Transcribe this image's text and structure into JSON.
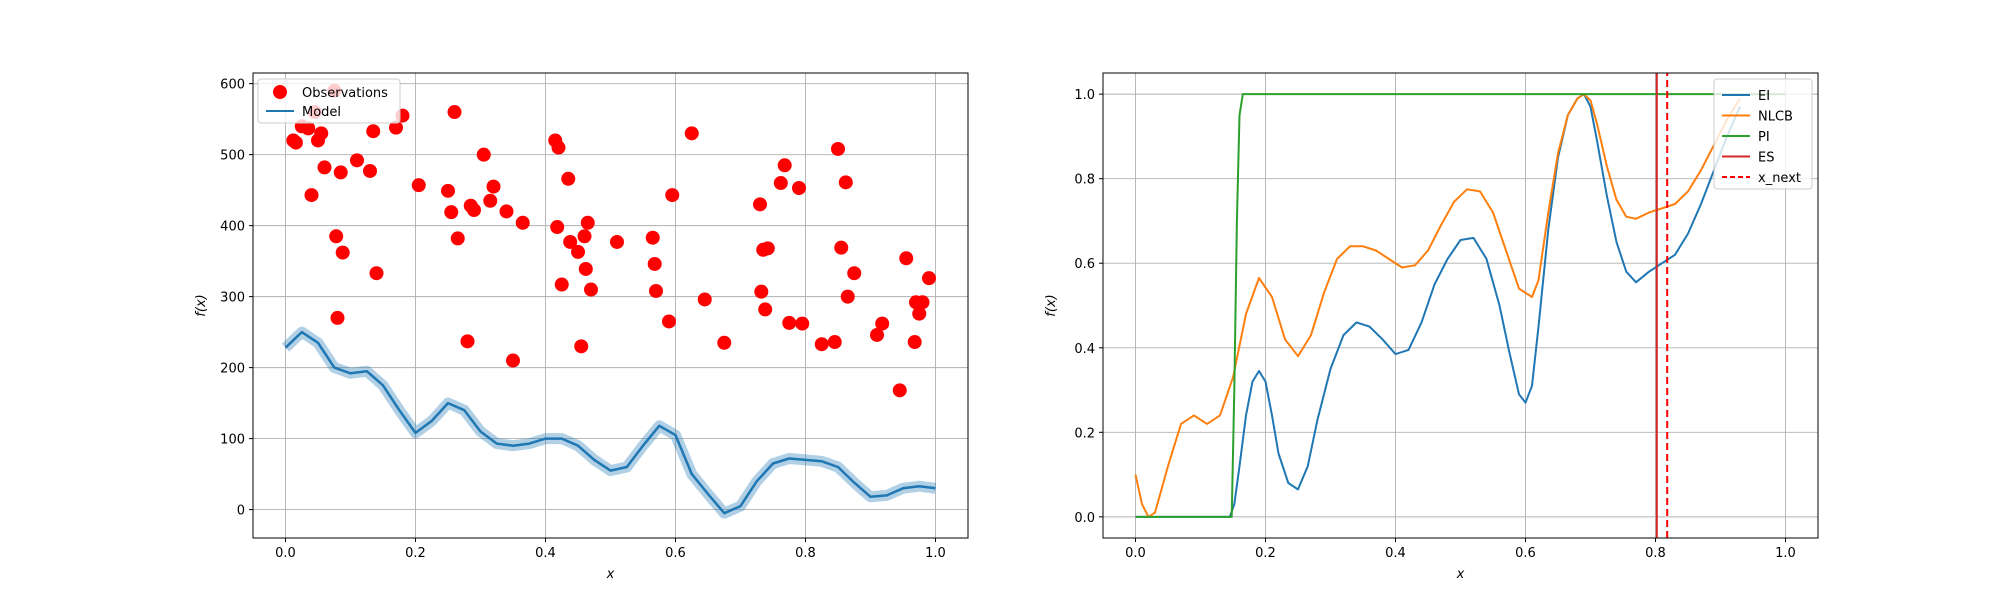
{
  "chart_data": [
    {
      "type": "scatter",
      "title": "",
      "xlabel": "x",
      "ylabel": "f(x)",
      "xlim": [
        -0.05,
        1.05
      ],
      "ylim": [
        -40,
        615
      ],
      "xticks": [
        "0.0",
        "0.2",
        "0.4",
        "0.6",
        "0.8",
        "1.0"
      ],
      "yticks": [
        "0",
        "100",
        "200",
        "300",
        "400",
        "500",
        "600"
      ],
      "grid": true,
      "legend_position": "top-left",
      "legend": [
        "Observations",
        "Model"
      ],
      "colors": {
        "observations": "#ff0000",
        "model": "#1f77b4"
      },
      "observations": {
        "name": "Observations",
        "x": [
          0.012,
          0.016,
          0.025,
          0.035,
          0.04,
          0.045,
          0.05,
          0.055,
          0.06,
          0.075,
          0.078,
          0.08,
          0.085,
          0.088,
          0.11,
          0.13,
          0.135,
          0.14,
          0.17,
          0.18,
          0.205,
          0.25,
          0.255,
          0.26,
          0.265,
          0.28,
          0.285,
          0.29,
          0.305,
          0.315,
          0.32,
          0.34,
          0.35,
          0.365,
          0.415,
          0.418,
          0.42,
          0.425,
          0.435,
          0.438,
          0.45,
          0.455,
          0.46,
          0.462,
          0.465,
          0.47,
          0.51,
          0.565,
          0.568,
          0.57,
          0.59,
          0.595,
          0.625,
          0.645,
          0.675,
          0.73,
          0.732,
          0.735,
          0.738,
          0.742,
          0.762,
          0.768,
          0.775,
          0.79,
          0.795,
          0.825,
          0.845,
          0.85,
          0.855,
          0.862,
          0.865,
          0.875,
          0.91,
          0.918,
          0.945,
          0.955,
          0.968,
          0.97,
          0.975,
          0.98,
          0.99
        ],
        "y": [
          520,
          517,
          540,
          537,
          443,
          560,
          520,
          530,
          482,
          590,
          385,
          270,
          475,
          362,
          492,
          477,
          533,
          333,
          538,
          555,
          457,
          449,
          419,
          560,
          382,
          237,
          428,
          422,
          500,
          435,
          455,
          420,
          210,
          404,
          520,
          398,
          510,
          317,
          466,
          377,
          363,
          230,
          385,
          339,
          404,
          310,
          377,
          383,
          346,
          308,
          265,
          443,
          530,
          296,
          235,
          430,
          307,
          366,
          282,
          368,
          460,
          485,
          263,
          453,
          262,
          233,
          236,
          508,
          369,
          461,
          300,
          333,
          246,
          262,
          168,
          354,
          236,
          292,
          276,
          292,
          326
        ]
      },
      "model": {
        "name": "Model",
        "x": [
          0.0,
          0.025,
          0.05,
          0.075,
          0.1,
          0.125,
          0.15,
          0.175,
          0.2,
          0.225,
          0.25,
          0.275,
          0.3,
          0.325,
          0.35,
          0.375,
          0.4,
          0.425,
          0.45,
          0.475,
          0.5,
          0.525,
          0.55,
          0.575,
          0.6,
          0.625,
          0.65,
          0.675,
          0.7,
          0.725,
          0.75,
          0.775,
          0.8,
          0.825,
          0.85,
          0.875,
          0.9,
          0.925,
          0.95,
          0.975,
          1.0
        ],
        "y": [
          228,
          250,
          235,
          200,
          192,
          195,
          175,
          140,
          108,
          125,
          150,
          140,
          110,
          93,
          90,
          93,
          100,
          100,
          90,
          70,
          55,
          60,
          90,
          118,
          105,
          50,
          22,
          -5,
          5,
          40,
          65,
          72,
          70,
          68,
          60,
          38,
          18,
          20,
          30,
          33,
          30
        ]
      }
    },
    {
      "type": "line",
      "title": "",
      "xlabel": "x",
      "ylabel": "f(x)",
      "xlim": [
        -0.05,
        1.05
      ],
      "ylim": [
        -0.05,
        1.05
      ],
      "xticks": [
        "0.0",
        "0.2",
        "0.4",
        "0.6",
        "0.8",
        "1.0"
      ],
      "yticks": [
        "0.0",
        "0.2",
        "0.4",
        "0.6",
        "0.8",
        "1.0"
      ],
      "grid": true,
      "legend_position": "top-right",
      "legend": [
        "EI",
        "NLCB",
        "PI",
        "ES",
        "x_next"
      ],
      "series": [
        {
          "name": "EI",
          "color": "#1f77b4",
          "x": [
            0.0,
            0.145,
            0.152,
            0.16,
            0.17,
            0.18,
            0.19,
            0.2,
            0.21,
            0.22,
            0.235,
            0.25,
            0.265,
            0.28,
            0.3,
            0.32,
            0.34,
            0.36,
            0.38,
            0.4,
            0.42,
            0.44,
            0.46,
            0.48,
            0.5,
            0.52,
            0.54,
            0.56,
            0.575,
            0.59,
            0.6,
            0.61,
            0.62,
            0.635,
            0.65,
            0.665,
            0.68,
            0.69,
            0.7,
            0.71,
            0.725,
            0.74,
            0.755,
            0.77,
            0.79,
            0.81,
            0.83,
            0.85,
            0.87,
            0.89,
            0.91,
            0.93
          ],
          "y": [
            0.0,
            0.0,
            0.03,
            0.12,
            0.24,
            0.32,
            0.345,
            0.32,
            0.24,
            0.15,
            0.08,
            0.065,
            0.12,
            0.23,
            0.35,
            0.43,
            0.46,
            0.45,
            0.42,
            0.385,
            0.395,
            0.46,
            0.55,
            0.61,
            0.655,
            0.66,
            0.61,
            0.5,
            0.39,
            0.29,
            0.27,
            0.31,
            0.45,
            0.68,
            0.85,
            0.95,
            0.99,
            1.0,
            0.97,
            0.89,
            0.76,
            0.65,
            0.58,
            0.555,
            0.58,
            0.6,
            0.62,
            0.67,
            0.74,
            0.82,
            0.9,
            0.97
          ]
        },
        {
          "name": "NLCB",
          "color": "#ff7f0e",
          "x": [
            0.0,
            0.01,
            0.02,
            0.03,
            0.05,
            0.07,
            0.09,
            0.11,
            0.13,
            0.15,
            0.17,
            0.19,
            0.21,
            0.23,
            0.25,
            0.27,
            0.29,
            0.31,
            0.33,
            0.35,
            0.37,
            0.39,
            0.41,
            0.43,
            0.45,
            0.47,
            0.49,
            0.51,
            0.53,
            0.55,
            0.57,
            0.59,
            0.61,
            0.62,
            0.635,
            0.65,
            0.665,
            0.68,
            0.69,
            0.7,
            0.71,
            0.725,
            0.74,
            0.755,
            0.77,
            0.79,
            0.81,
            0.83,
            0.85,
            0.87,
            0.89,
            0.91,
            0.93
          ],
          "y": [
            0.1,
            0.03,
            0.0,
            0.01,
            0.12,
            0.22,
            0.24,
            0.22,
            0.24,
            0.33,
            0.48,
            0.565,
            0.52,
            0.42,
            0.38,
            0.43,
            0.53,
            0.61,
            0.64,
            0.64,
            0.63,
            0.61,
            0.59,
            0.595,
            0.63,
            0.69,
            0.745,
            0.775,
            0.77,
            0.72,
            0.63,
            0.54,
            0.52,
            0.56,
            0.72,
            0.86,
            0.95,
            0.99,
            1.0,
            0.985,
            0.93,
            0.83,
            0.75,
            0.71,
            0.705,
            0.72,
            0.73,
            0.74,
            0.77,
            0.82,
            0.88,
            0.94,
            0.99
          ]
        },
        {
          "name": "PI",
          "color": "#2ca02c",
          "x": [
            0.0,
            0.148,
            0.152,
            0.156,
            0.16,
            0.165,
            1.0
          ],
          "y": [
            0.0,
            0.0,
            0.3,
            0.7,
            0.95,
            1.0,
            1.0
          ]
        },
        {
          "name": "ES",
          "color": "#d62728",
          "x": [
            0.802,
            0.802
          ],
          "y": [
            -0.05,
            1.05
          ]
        },
        {
          "name": "x_next",
          "color": "#ff0000",
          "dashed": true,
          "x": [
            0.818,
            0.818
          ],
          "y": [
            -0.05,
            1.05
          ]
        }
      ]
    }
  ]
}
